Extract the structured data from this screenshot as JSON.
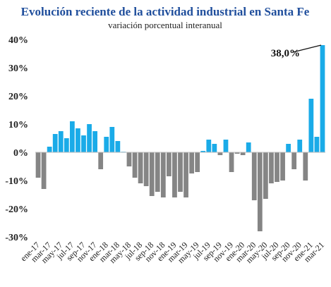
{
  "chart_data": {
    "type": "bar",
    "title": "Evolución reciente de la actividad industrial en Santa Fe",
    "subtitle": "variación porcentual interanual",
    "categories": [
      "ene-17",
      null,
      "mar-17",
      null,
      "may-17",
      null,
      "jul-17",
      null,
      "sep-17",
      null,
      "nov-17",
      null,
      "ene-18",
      null,
      "mar-18",
      null,
      "may-18",
      null,
      "jul-18",
      null,
      "sep-18",
      null,
      "nov-18",
      null,
      "ene-19",
      null,
      "mar-19",
      null,
      "may-19",
      null,
      "jul-19",
      null,
      "sep-19",
      null,
      "nov-19",
      null,
      "ene-20",
      null,
      "mar-20",
      null,
      "may-20",
      null,
      "jul-20",
      null,
      "sep-20",
      null,
      "nov-20",
      null,
      "ene-21",
      null,
      "mar-21"
    ],
    "values": [
      -9,
      -13,
      2,
      6.5,
      7.5,
      5,
      11,
      8.5,
      6,
      10,
      7.5,
      -6,
      5.5,
      9,
      4,
      0.2,
      -5,
      -9,
      -11,
      -12,
      -15.5,
      -14,
      -16,
      -8.5,
      -16,
      -14,
      -16,
      -7.5,
      -7,
      0.5,
      4.5,
      3,
      -1,
      4.5,
      -7,
      -0.5,
      -1,
      3.5,
      -17,
      -28,
      -16.5,
      -11,
      -10.5,
      -10,
      3,
      -6,
      4.5,
      -10,
      19,
      5.5,
      38
    ],
    "positive_color": "#1aabe8",
    "negative_color": "#858585",
    "annotation": "38,0%",
    "ylim": [
      -30,
      40
    ],
    "yticks": [
      {
        "value": -30,
        "label": "-30%"
      },
      {
        "value": -20,
        "label": "-20%"
      },
      {
        "value": -10,
        "label": "-10%"
      },
      {
        "value": 0,
        "label": "0%"
      },
      {
        "value": 10,
        "label": "10%"
      },
      {
        "value": 20,
        "label": "20%"
      },
      {
        "value": 30,
        "label": "30%"
      },
      {
        "value": 40,
        "label": "40%"
      }
    ]
  }
}
